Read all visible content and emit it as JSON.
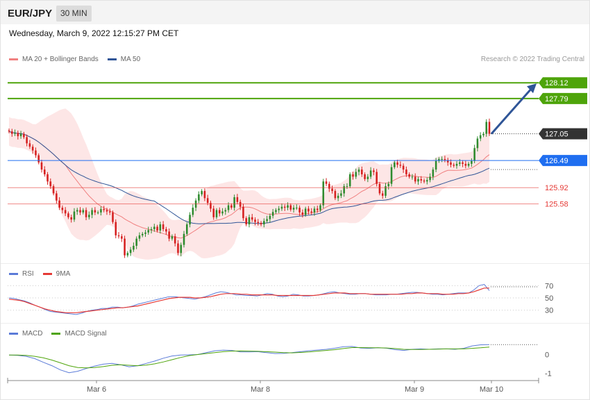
{
  "header": {
    "symbol": "EUR/JPY",
    "timeframe": "30 MIN"
  },
  "datetime": "Wednesday, March 9, 2022 12:15:27 PM CET",
  "legend_main": {
    "ma20": "MA 20 + Bollinger Bands",
    "ma50": "MA 50"
  },
  "copyright": "Research © 2022 Trading Central",
  "legend_rsi": {
    "rsi": "RSI",
    "ma9": "9MA"
  },
  "legend_macd": {
    "macd": "MACD",
    "signal": "MACD Signal"
  },
  "colors": {
    "ma20": "#f08080",
    "band": "#fde3e3",
    "ma50": "#2f5597",
    "green": "#4ea40a",
    "blue": "#1f6ef0",
    "red": "#e53935",
    "dark": "#333333",
    "up": "#2e8b2e",
    "down": "#d62020",
    "rsi": "#5b7bd8",
    "macd": "#5b7bd8"
  },
  "chart_data": [
    {
      "type": "candlestick",
      "title": "EUR/JPY",
      "ylim": [
        124.35,
        128.4
      ],
      "x_ticks": [
        "Mar 6",
        "Mar 8",
        "Mar 9",
        "Mar 10"
      ],
      "price_levels": [
        {
          "label": "128.12",
          "value": 128.12,
          "kind": "resistance"
        },
        {
          "label": "127.79",
          "value": 127.79,
          "kind": "resistance"
        },
        {
          "label": "127.05",
          "value": 127.05,
          "kind": "last"
        },
        {
          "label": "126.49",
          "value": 126.49,
          "kind": "pivot"
        },
        {
          "label": "125.92",
          "value": 125.92,
          "kind": "support"
        },
        {
          "label": "125.58",
          "value": 125.58,
          "kind": "support"
        }
      ],
      "close": [
        127.1,
        127.05,
        127.07,
        127.0,
        127.05,
        126.98,
        126.85,
        126.78,
        126.7,
        126.6,
        126.45,
        126.3,
        126.2,
        126.05,
        125.95,
        125.8,
        125.65,
        125.5,
        125.45,
        125.38,
        125.3,
        125.25,
        125.42,
        125.45,
        125.4,
        125.45,
        125.3,
        125.35,
        125.45,
        125.4,
        125.4,
        125.47,
        125.45,
        125.42,
        125.4,
        125.2,
        124.92,
        124.9,
        124.85,
        124.5,
        124.55,
        124.62,
        124.7,
        124.85,
        124.92,
        124.95,
        124.98,
        125.03,
        125.05,
        125.1,
        125.02,
        125.15,
        125.05,
        125.0,
        124.85,
        124.9,
        124.75,
        124.55,
        124.72,
        124.95,
        125.15,
        125.35,
        125.5,
        125.65,
        125.78,
        125.85,
        125.7,
        125.6,
        125.48,
        125.3,
        125.45,
        125.38,
        125.42,
        125.45,
        125.55,
        125.5,
        125.72,
        125.62,
        125.52,
        125.28,
        125.15,
        125.3,
        125.25,
        125.2,
        125.18,
        125.15,
        125.22,
        125.26,
        125.33,
        125.41,
        125.45,
        125.48,
        125.52,
        125.5,
        125.55,
        125.46,
        125.5,
        125.5,
        125.4,
        125.35,
        125.48,
        125.42,
        125.4,
        125.48,
        125.45,
        125.55,
        126.05,
        126.0,
        125.9,
        125.85,
        125.7,
        125.75,
        125.8,
        125.95,
        125.95,
        126.2,
        126.15,
        126.25,
        126.3,
        126.2,
        126.1,
        126.15,
        126.28,
        126.25,
        126.0,
        125.8,
        125.75,
        125.95,
        126.0,
        126.35,
        126.45,
        126.4,
        126.38,
        126.3,
        126.2,
        126.15,
        126.15,
        126.05,
        126.1,
        126.07,
        126.05,
        126.08,
        126.15,
        126.3,
        126.48,
        126.52,
        126.52,
        126.5,
        126.45,
        126.4,
        126.38,
        126.42,
        126.45,
        126.42,
        126.38,
        126.42,
        126.48,
        126.75,
        126.95,
        127.02,
        127.05,
        127.3,
        127.05
      ]
    },
    {
      "type": "line",
      "title": "RSI",
      "y_ticks": [
        70,
        50,
        30
      ],
      "ylim": [
        15,
        85
      ],
      "series": [
        {
          "name": "RSI",
          "values": [
            50,
            49,
            47,
            45,
            42,
            38,
            35,
            31,
            28,
            27,
            26,
            25,
            24,
            23,
            25,
            28,
            30,
            31,
            33,
            33,
            35,
            35,
            34,
            35,
            37,
            40,
            42,
            44,
            46,
            48,
            50,
            52,
            52,
            51,
            50,
            49,
            48,
            50,
            52,
            55,
            58,
            60,
            59,
            57,
            55,
            55,
            54,
            54,
            53,
            55,
            57,
            56,
            53,
            52,
            53,
            56,
            55,
            53,
            53,
            54,
            55,
            57,
            59,
            60,
            58,
            57,
            56,
            56,
            57,
            57,
            56,
            55,
            55,
            55,
            56,
            56,
            57,
            58,
            59,
            59,
            58,
            57,
            56,
            56,
            55,
            56,
            57,
            58,
            58,
            58,
            63,
            70,
            72,
            62
          ]
        },
        {
          "name": "9MA",
          "values": [
            48,
            47,
            46,
            44,
            41,
            38,
            35,
            32,
            30,
            28,
            27,
            26,
            26,
            26,
            27,
            28,
            29,
            30,
            31,
            32,
            33,
            34,
            34,
            35,
            36,
            37,
            39,
            41,
            43,
            45,
            47,
            49,
            50,
            51,
            51,
            51,
            50,
            50,
            51,
            52,
            54,
            56,
            57,
            57,
            57,
            56,
            56,
            55,
            55,
            55,
            55,
            55,
            54,
            54,
            54,
            54,
            54,
            54,
            54,
            54,
            55,
            56,
            57,
            58,
            58,
            58,
            57,
            57,
            57,
            57,
            56,
            56,
            56,
            56,
            56,
            56,
            56,
            57,
            57,
            58,
            58,
            57,
            57,
            57,
            56,
            56,
            56,
            57,
            57,
            58,
            60,
            63,
            66,
            66
          ]
        }
      ]
    },
    {
      "type": "line",
      "title": "MACD",
      "y_ticks": [
        0,
        -1
      ],
      "ylim": [
        -1.4,
        0.95
      ],
      "series": [
        {
          "name": "MACD",
          "values": [
            -0.03,
            -0.05,
            -0.1,
            -0.22,
            -0.42,
            -0.6,
            -0.83,
            -0.98,
            -0.9,
            -0.75,
            -0.62,
            -0.52,
            -0.48,
            -0.55,
            -0.66,
            -0.6,
            -0.48,
            -0.35,
            -0.2,
            -0.08,
            -0.03,
            -0.02,
            0.0,
            0.1,
            0.2,
            0.23,
            0.22,
            0.14,
            0.14,
            0.15,
            0.1,
            0.05,
            0.06,
            0.1,
            0.15,
            0.2,
            0.24,
            0.28,
            0.34,
            0.42,
            0.43,
            0.35,
            0.33,
            0.36,
            0.34,
            0.26,
            0.22,
            0.28,
            0.3,
            0.28,
            0.3,
            0.3,
            0.28,
            0.33,
            0.46,
            0.52,
            0.53
          ]
        },
        {
          "name": "MACD Signal",
          "values": [
            -0.03,
            -0.03,
            -0.05,
            -0.1,
            -0.18,
            -0.3,
            -0.45,
            -0.6,
            -0.7,
            -0.72,
            -0.7,
            -0.65,
            -0.58,
            -0.55,
            -0.58,
            -0.6,
            -0.57,
            -0.5,
            -0.4,
            -0.28,
            -0.16,
            -0.06,
            0.0,
            0.05,
            0.1,
            0.15,
            0.18,
            0.19,
            0.18,
            0.17,
            0.15,
            0.13,
            0.1,
            0.09,
            0.11,
            0.14,
            0.18,
            0.22,
            0.26,
            0.32,
            0.37,
            0.37,
            0.36,
            0.36,
            0.35,
            0.32,
            0.28,
            0.27,
            0.27,
            0.28,
            0.29,
            0.3,
            0.3,
            0.3,
            0.33,
            0.36,
            0.4
          ]
        }
      ]
    }
  ]
}
